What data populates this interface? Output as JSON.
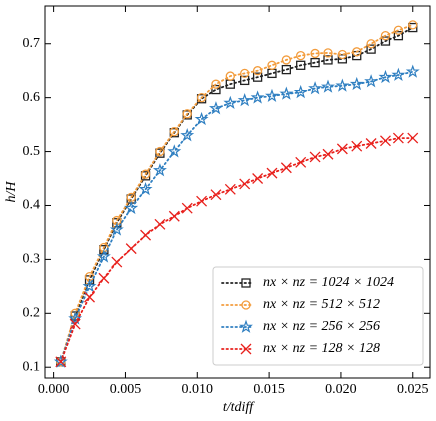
{
  "chart_data": {
    "type": "line",
    "x_label": "t/tdiff",
    "y_label": "h/H",
    "x": [
      0.0005,
      0.0015,
      0.0025,
      0.0035,
      0.0044,
      0.0054,
      0.0064,
      0.0074,
      0.0084,
      0.0093,
      0.0103,
      0.0113,
      0.0123,
      0.0133,
      0.0142,
      0.0152,
      0.0162,
      0.0172,
      0.0182,
      0.0191,
      0.0201,
      0.0211,
      0.0221,
      0.0231,
      0.024,
      0.025
    ],
    "series": [
      {
        "name": "nx × nz = 1024 × 1024",
        "color": "#222222",
        "marker": "square",
        "values": [
          0.11,
          0.195,
          0.262,
          0.318,
          0.368,
          0.412,
          0.455,
          0.497,
          0.535,
          0.568,
          0.598,
          0.615,
          0.625,
          0.632,
          0.638,
          0.645,
          0.652,
          0.66,
          0.665,
          0.67,
          0.672,
          0.678,
          0.69,
          0.705,
          0.715,
          0.73
        ]
      },
      {
        "name": "nx × nz = 512 × 512",
        "color": "#f39c3c",
        "marker": "circle",
        "values": [
          0.11,
          0.2,
          0.268,
          0.322,
          0.372,
          0.415,
          0.458,
          0.5,
          0.537,
          0.57,
          0.6,
          0.625,
          0.64,
          0.645,
          0.65,
          0.66,
          0.67,
          0.678,
          0.682,
          0.683,
          0.68,
          0.685,
          0.7,
          0.715,
          0.725,
          0.735
        ]
      },
      {
        "name": "nx × nz = 256 × 256",
        "color": "#2f7fc1",
        "marker": "star",
        "values": [
          0.11,
          0.19,
          0.25,
          0.305,
          0.355,
          0.395,
          0.43,
          0.465,
          0.5,
          0.53,
          0.56,
          0.58,
          0.59,
          0.595,
          0.6,
          0.603,
          0.607,
          0.61,
          0.617,
          0.62,
          0.622,
          0.625,
          0.63,
          0.638,
          0.642,
          0.648
        ]
      },
      {
        "name": "nx × nz = 128 × 128",
        "color": "#e8201c",
        "marker": "x",
        "values": [
          0.11,
          0.18,
          0.23,
          0.265,
          0.295,
          0.32,
          0.345,
          0.365,
          0.38,
          0.395,
          0.408,
          0.42,
          0.43,
          0.44,
          0.45,
          0.46,
          0.47,
          0.48,
          0.49,
          0.495,
          0.505,
          0.51,
          0.515,
          0.52,
          0.525,
          0.525
        ]
      }
    ],
    "xlim": [
      -0.0006,
      0.0262
    ],
    "ylim": [
      0.08,
      0.77
    ],
    "xticks": [
      {
        "value": 0,
        "label": "0.000"
      },
      0.005,
      {
        "value": 0.01,
        "label": "0.010"
      },
      0.015,
      {
        "value": 0.02,
        "label": "0.020"
      },
      0.025
    ],
    "yticks": [
      0.1,
      0.2,
      0.3,
      0.4,
      0.5,
      0.6,
      0.7
    ],
    "legend": "lower right",
    "grid": false
  }
}
